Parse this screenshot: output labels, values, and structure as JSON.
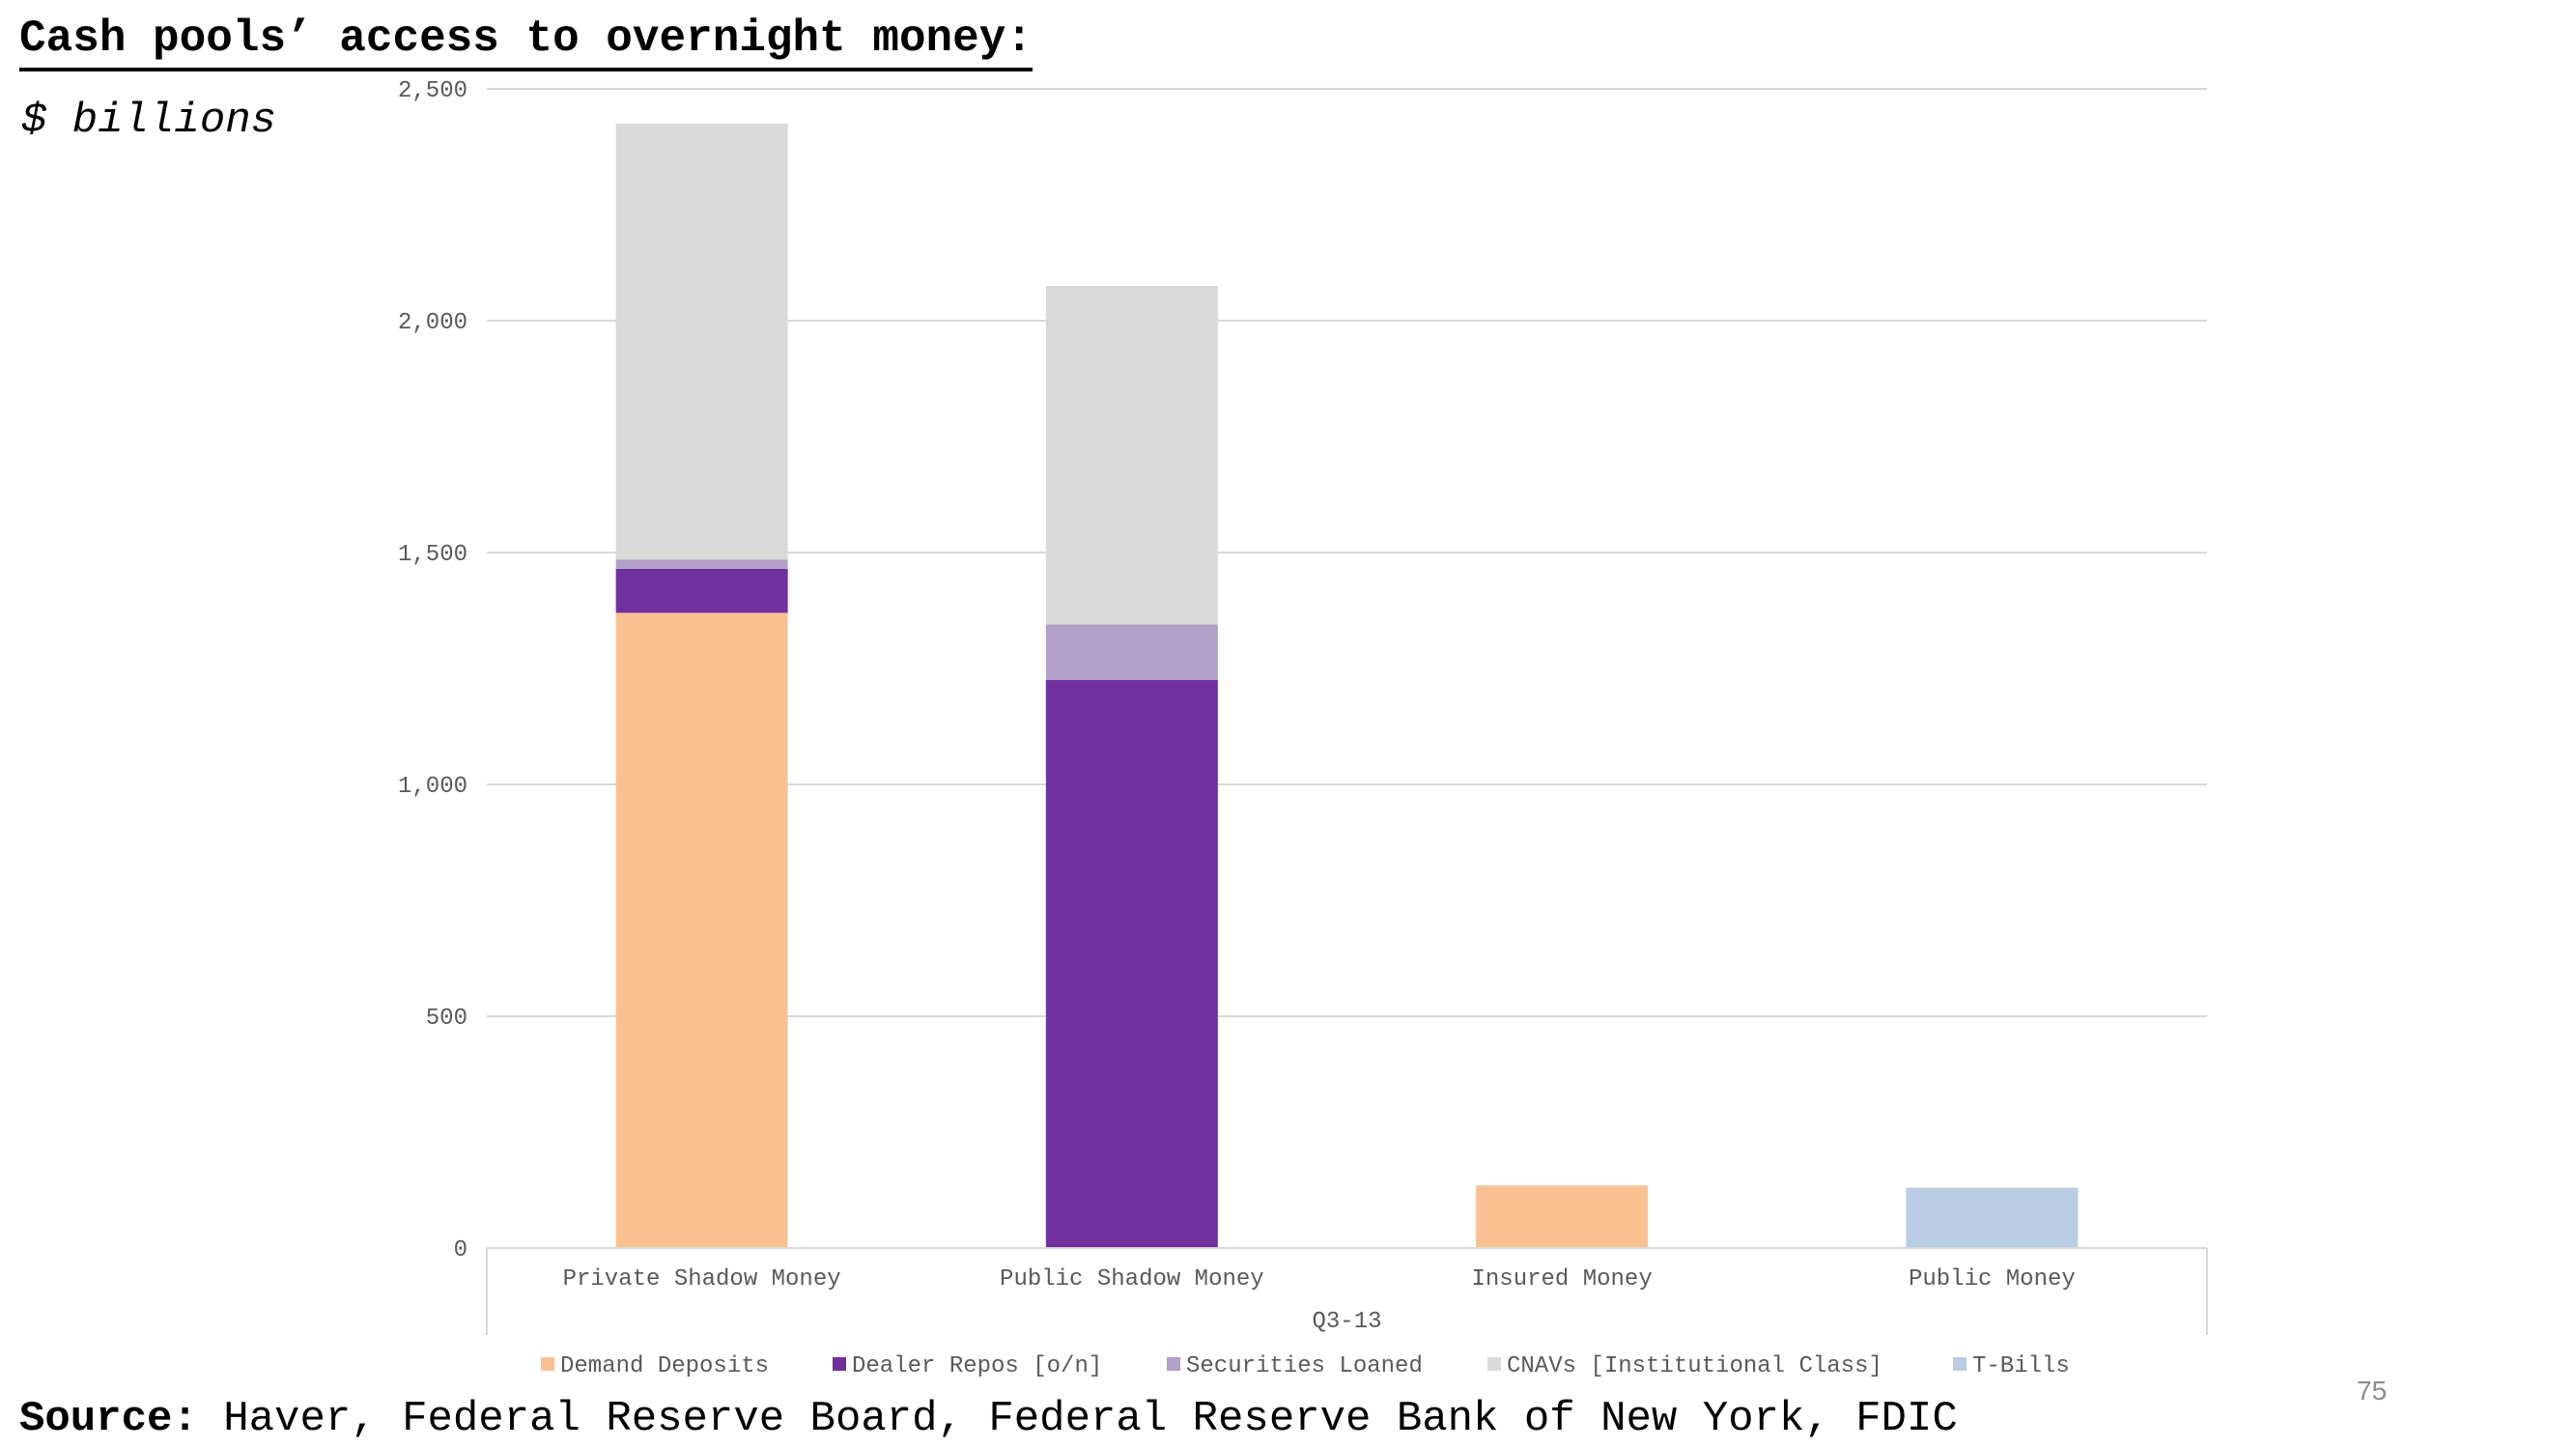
{
  "slide": {
    "title": "Cash pools’ access to overnight money:",
    "subtitle": "$ billions",
    "source_label": "Source:",
    "source_text": " Haver, Federal Reserve Board, Federal Reserve Bank of New York, FDIC",
    "page_number": "75"
  },
  "chart_data": {
    "type": "bar",
    "stacked": true,
    "title": "",
    "xlabel": "",
    "ylabel": "",
    "period_label": "Q3-13",
    "categories": [
      "Private Shadow Money",
      "Public Shadow Money",
      "Insured Money",
      "Public Money"
    ],
    "ylim": [
      0,
      2500
    ],
    "yticks": [
      0,
      500,
      1000,
      1500,
      2000,
      2500
    ],
    "ytick_labels": [
      "0",
      "500",
      "1,000",
      "1,500",
      "2,000",
      "2,500"
    ],
    "grid": true,
    "legend_position": "bottom",
    "series": [
      {
        "name": "Demand Deposits",
        "color": "#F9C192",
        "values": [
          1370,
          0,
          135,
          0
        ]
      },
      {
        "name": "Dealer Repos [o/n]",
        "color": "#7030A0",
        "values": [
          95,
          1225,
          0,
          0
        ]
      },
      {
        "name": "Securities Loaned",
        "color": "#B1A0C7",
        "values": [
          20,
          120,
          0,
          0
        ]
      },
      {
        "name": "CNAVs [Institutional Class]",
        "color": "#D9D9D9",
        "values": [
          940,
          730,
          0,
          0
        ]
      },
      {
        "name": "T-Bills",
        "color": "#B8CCE4",
        "values": [
          0,
          0,
          0,
          130
        ]
      }
    ]
  }
}
